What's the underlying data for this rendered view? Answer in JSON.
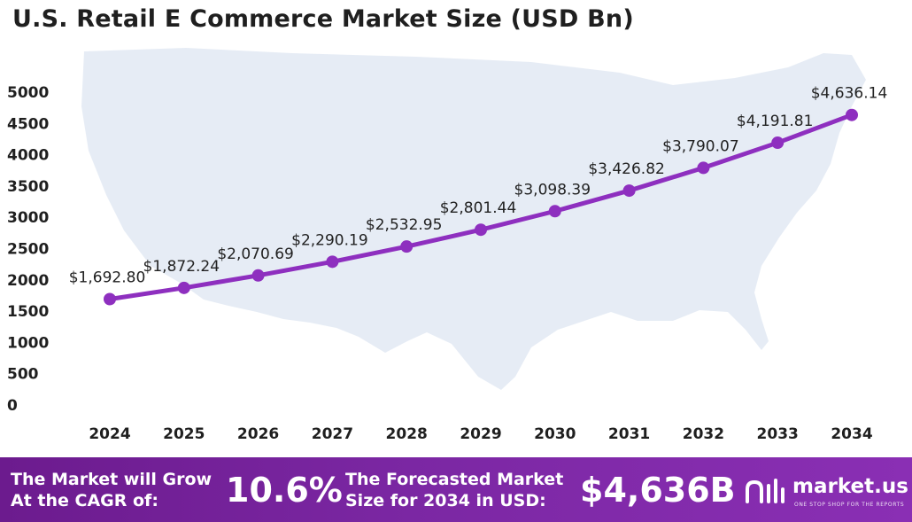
{
  "chart_data": {
    "type": "line",
    "title": "U.S. Retail E Commerce Market Size (USD Bn)",
    "x": [
      "2024",
      "2025",
      "2026",
      "2027",
      "2028",
      "2029",
      "2030",
      "2031",
      "2032",
      "2033",
      "2034"
    ],
    "series": [
      {
        "values": [
          1692.8,
          1872.24,
          2070.69,
          2290.19,
          2532.95,
          2801.44,
          3098.39,
          3426.82,
          3790.07,
          4191.81,
          4636.14
        ],
        "labels": [
          "$1,692.80",
          "$1,872.24",
          "$2,070.69",
          "$2,290.19",
          "$2,532.95",
          "$2,801.44",
          "$3,098.39",
          "$3,426.82",
          "$3,790.07",
          "$4,191.81",
          "$4,636.14"
        ]
      }
    ],
    "yticks": [
      "0",
      "500",
      "1000",
      "1500",
      "2000",
      "2500",
      "3000",
      "3500",
      "4000",
      "4500",
      "5000"
    ],
    "ylim": [
      0,
      5000
    ],
    "grid": false,
    "line_color": "#8e2fbf"
  },
  "footer": {
    "cagr_line1": "The Market will Grow",
    "cagr_line2": "At the CAGR of:",
    "cagr_value": "10.6%",
    "forecast_line1": "The Forecasted Market",
    "forecast_line2": "Size for 2034 in USD:",
    "forecast_value": "$4,636B",
    "logo_text": "market.us",
    "logo_tagline": "ONE STOP SHOP FOR THE REPORTS"
  }
}
